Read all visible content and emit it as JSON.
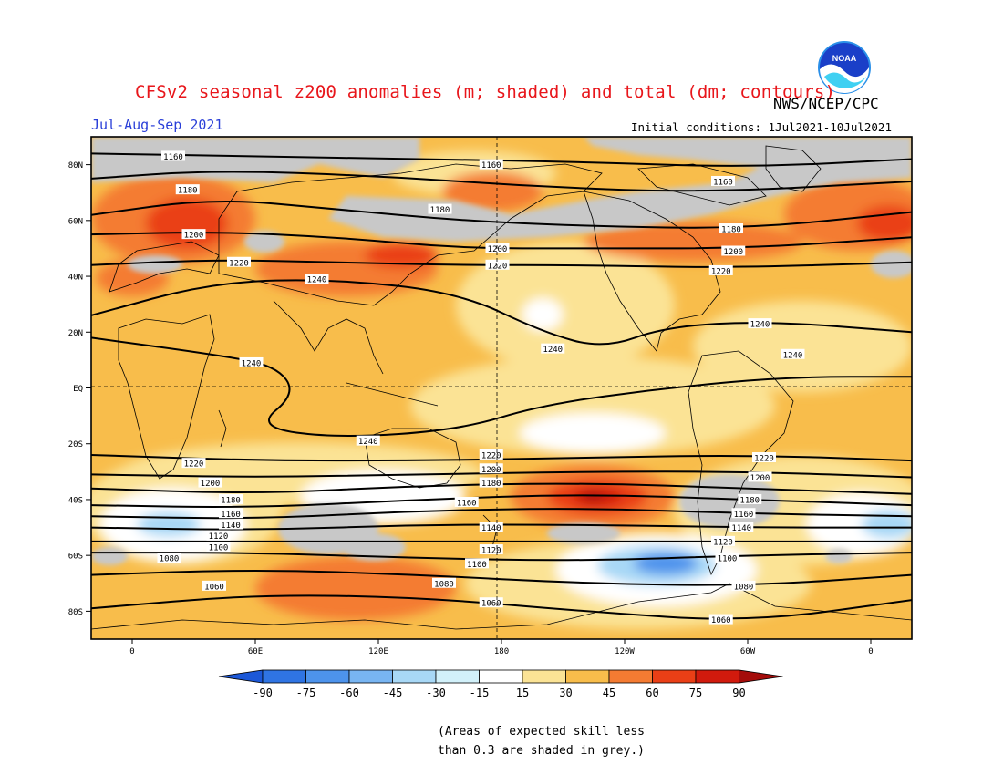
{
  "header": {
    "title": "CFSv2 seasonal z200 anomalies (m; shaded) and total (dm; contours)",
    "season": "Jul-Aug-Sep 2021",
    "agency": "NWS/NCEP/CPC",
    "initial_conditions": "Initial conditions: 1Jul2021-10Jul2021",
    "logo_text": "NOAA"
  },
  "map": {
    "lat_labels": [
      "80N",
      "60N",
      "40N",
      "20N",
      "EQ",
      "20S",
      "40S",
      "60S",
      "80S"
    ],
    "lat_values": [
      80,
      60,
      40,
      20,
      0,
      -20,
      -40,
      -60,
      -80
    ],
    "lon_labels": [
      "0",
      "60E",
      "120E",
      "180",
      "120W",
      "60W",
      "0"
    ],
    "lon_values": [
      0,
      60,
      120,
      180,
      240,
      300,
      360
    ],
    "contour_labels": [
      {
        "text": "1160",
        "lon": 20,
        "lat": 83
      },
      {
        "text": "1160",
        "lon": 175,
        "lat": 80
      },
      {
        "text": "1160",
        "lon": 288,
        "lat": 74
      },
      {
        "text": "1180",
        "lon": 27,
        "lat": 71
      },
      {
        "text": "1180",
        "lon": 150,
        "lat": 64
      },
      {
        "text": "1180",
        "lon": 292,
        "lat": 57
      },
      {
        "text": "1200",
        "lon": 30,
        "lat": 55
      },
      {
        "text": "1200",
        "lon": 178,
        "lat": 50
      },
      {
        "text": "1200",
        "lon": 293,
        "lat": 49
      },
      {
        "text": "1220",
        "lon": 52,
        "lat": 45
      },
      {
        "text": "1220",
        "lon": 178,
        "lat": 44
      },
      {
        "text": "1220",
        "lon": 287,
        "lat": 42
      },
      {
        "text": "1240",
        "lon": 90,
        "lat": 39
      },
      {
        "text": "1240",
        "lon": 205,
        "lat": 14
      },
      {
        "text": "1240",
        "lon": 306,
        "lat": 23
      },
      {
        "text": "1240",
        "lon": 322,
        "lat": 12
      },
      {
        "text": "1240",
        "lon": 58,
        "lat": 9
      },
      {
        "text": "1240",
        "lon": 115,
        "lat": -19
      },
      {
        "text": "1220",
        "lon": 30,
        "lat": -27
      },
      {
        "text": "1220",
        "lon": 175,
        "lat": -24
      },
      {
        "text": "1220",
        "lon": 308,
        "lat": -25
      },
      {
        "text": "1200",
        "lon": 175,
        "lat": -29
      },
      {
        "text": "1200",
        "lon": 306,
        "lat": -32
      },
      {
        "text": "1200",
        "lon": 38,
        "lat": -34
      },
      {
        "text": "1180",
        "lon": 175,
        "lat": -34
      },
      {
        "text": "1180",
        "lon": 301,
        "lat": -40
      },
      {
        "text": "1180",
        "lon": 48,
        "lat": -40
      },
      {
        "text": "1160",
        "lon": 163,
        "lat": -41
      },
      {
        "text": "1160",
        "lon": 298,
        "lat": -45
      },
      {
        "text": "1160",
        "lon": 48,
        "lat": -45
      },
      {
        "text": "1140",
        "lon": 48,
        "lat": -49
      },
      {
        "text": "1140",
        "lon": 175,
        "lat": -50
      },
      {
        "text": "1140",
        "lon": 297,
        "lat": -50
      },
      {
        "text": "1120",
        "lon": 42,
        "lat": -53
      },
      {
        "text": "1120",
        "lon": 175,
        "lat": -58
      },
      {
        "text": "1120",
        "lon": 288,
        "lat": -55
      },
      {
        "text": "1100",
        "lon": 42,
        "lat": -57
      },
      {
        "text": "1100",
        "lon": 168,
        "lat": -63
      },
      {
        "text": "1100",
        "lon": 290,
        "lat": -61
      },
      {
        "text": "1080",
        "lon": 18,
        "lat": -61
      },
      {
        "text": "1080",
        "lon": 152,
        "lat": -70
      },
      {
        "text": "1080",
        "lon": 298,
        "lat": -71
      },
      {
        "text": "1060",
        "lon": 40,
        "lat": -71
      },
      {
        "text": "1060",
        "lon": 175,
        "lat": -77
      },
      {
        "text": "1060",
        "lon": 287,
        "lat": -83
      }
    ]
  },
  "colorbar": {
    "labels": [
      "-90",
      "-75",
      "-60",
      "-45",
      "-30",
      "-15",
      "15",
      "30",
      "45",
      "60",
      "75",
      "90"
    ],
    "colors": [
      "#1c58d8",
      "#2f74e3",
      "#4d93ec",
      "#78b5f2",
      "#a8d8f6",
      "#d2f1fa",
      "#ffffff",
      "#fbe395",
      "#f8bd4b",
      "#f47b32",
      "#ea3f16",
      "#d11a0d",
      "#a40c0a"
    ]
  },
  "footnote": {
    "line1": "(Areas of expected skill less",
    "line2": "than 0.3 are shaded in grey.)"
  }
}
